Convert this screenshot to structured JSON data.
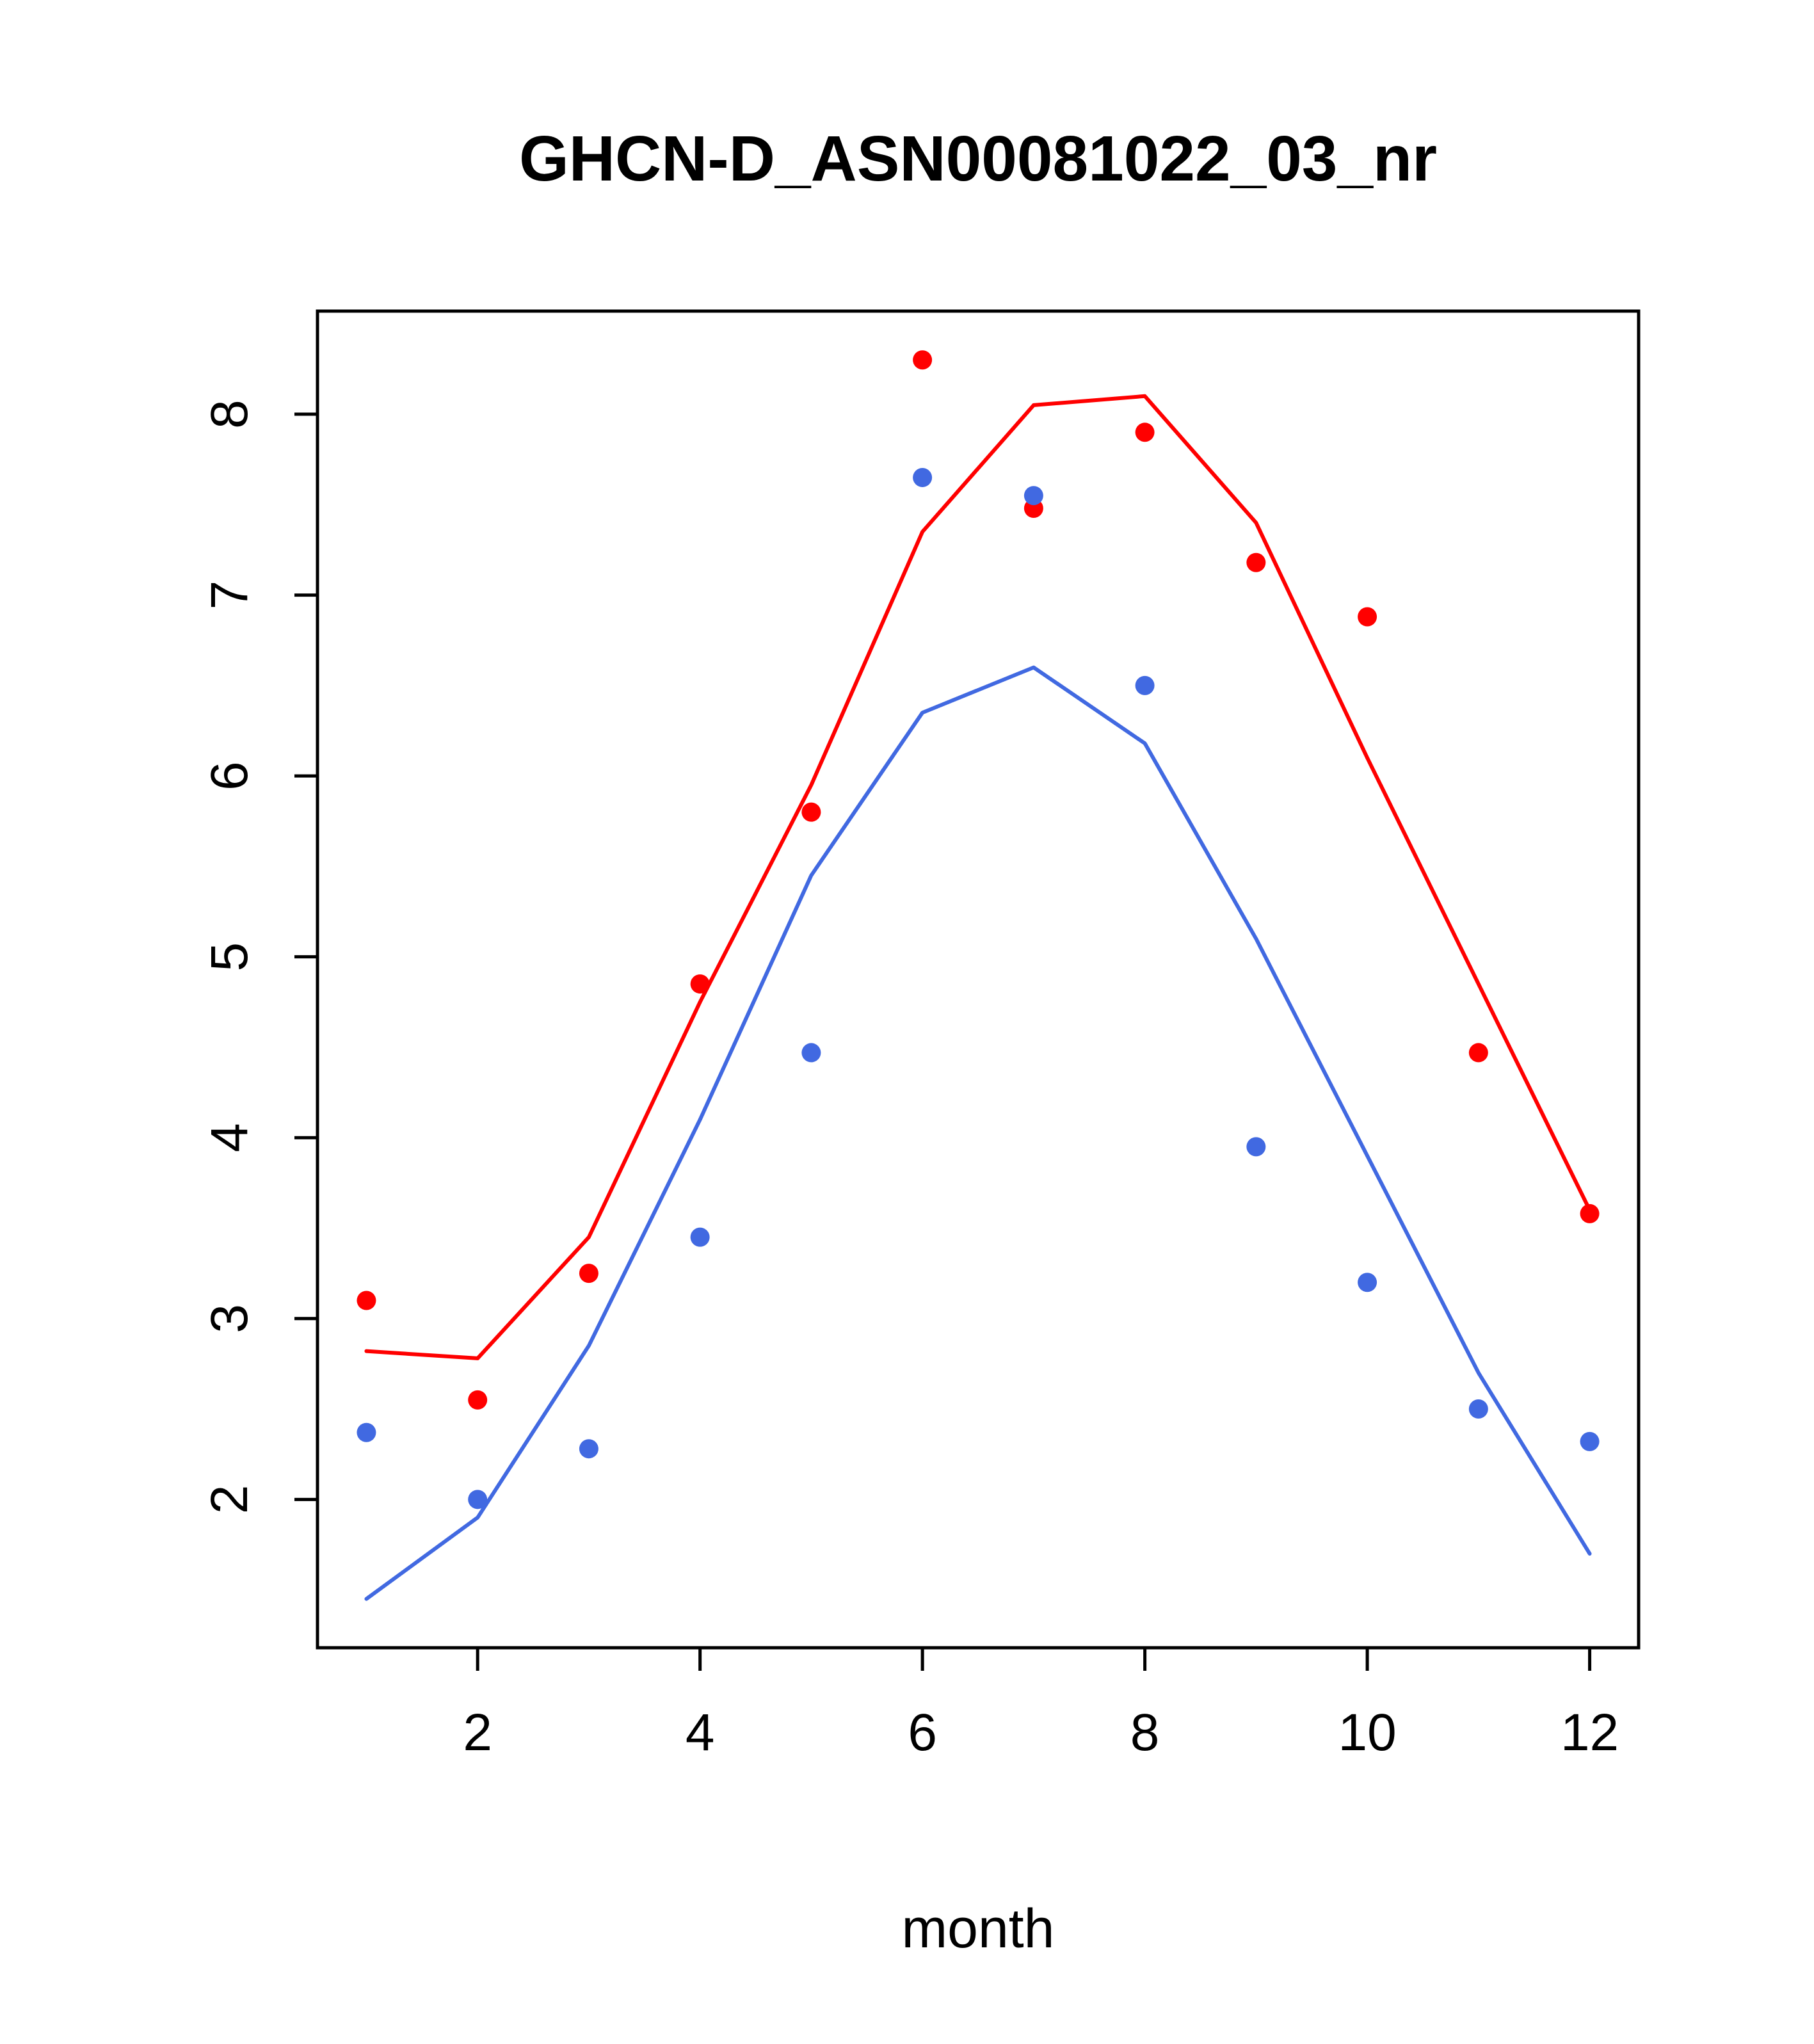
{
  "chart_data": {
    "type": "line",
    "title": "GHCN-D_ASN00081022_03_nr",
    "xlabel": "month",
    "ylabel": "",
    "grid": false,
    "legend_position": "none",
    "x": [
      1,
      2,
      3,
      4,
      5,
      6,
      7,
      8,
      9,
      10,
      11,
      12
    ],
    "xlim": [
      0.56,
      12.44
    ],
    "ylim": [
      1.18,
      8.57
    ],
    "x_ticks": [
      2,
      4,
      6,
      8,
      10,
      12
    ],
    "y_ticks": [
      2,
      3,
      4,
      5,
      6,
      7,
      8
    ],
    "colors": {
      "red": "#ff0000",
      "blue": "#4169e1",
      "frame": "#000000"
    },
    "series": [
      {
        "name": "red-points",
        "type": "scatter",
        "color": "#ff0000",
        "values": [
          3.1,
          2.55,
          3.25,
          4.85,
          5.8,
          8.3,
          7.48,
          7.9,
          7.18,
          6.88,
          4.47,
          3.58
        ]
      },
      {
        "name": "red-line",
        "type": "line",
        "color": "#ff0000",
        "values": [
          2.82,
          2.78,
          3.45,
          4.75,
          5.95,
          7.35,
          8.05,
          8.1,
          7.4,
          6.1,
          4.85,
          3.6
        ]
      },
      {
        "name": "blue-points",
        "type": "scatter",
        "color": "#4169e1",
        "values": [
          2.37,
          2.0,
          2.28,
          3.45,
          4.47,
          7.65,
          7.55,
          6.5,
          3.95,
          3.2,
          2.5,
          2.32
        ]
      },
      {
        "name": "blue-line",
        "type": "line",
        "color": "#4169e1",
        "values": [
          1.45,
          1.9,
          2.85,
          4.1,
          5.45,
          6.35,
          6.6,
          6.18,
          5.1,
          3.9,
          2.7,
          1.7
        ]
      }
    ]
  }
}
